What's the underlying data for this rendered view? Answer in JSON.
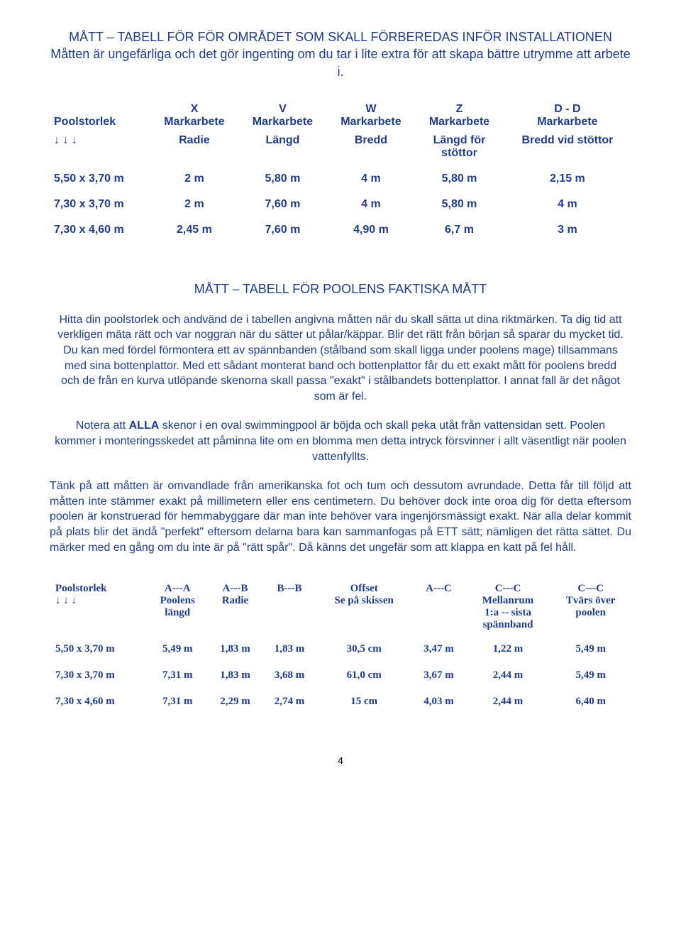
{
  "colors": {
    "text": "#1f3b8a",
    "pageNumber": "#000000",
    "background": "#ffffff"
  },
  "typography": {
    "bodyFont": "Arial",
    "table2Font": "Times New Roman",
    "bodySize": 16,
    "titleSize": 18,
    "table2Size": 15
  },
  "title": {
    "line1": "MÅTT – TABELL FÖR FÖR OMRÅDET SOM SKALL FÖRBEREDAS INFÖR INSTALLATIONEN",
    "line2": "Måtten är ungefärliga och det gör ingenting om du tar i lite extra för att skapa bättre utrymme att arbete i."
  },
  "table1": {
    "headers": {
      "col0": "Poolstorlek",
      "col1a": "X",
      "col1b": "Markarbete",
      "col2a": "V",
      "col2b": "Markarbete",
      "col3a": "W",
      "col3b": "Markarbete",
      "col4a": "Z",
      "col4b": "Markarbete",
      "col5a": "D - D",
      "col5b": "Markarbete"
    },
    "subheaders": {
      "col0": "↓ ↓ ↓",
      "col1": "Radie",
      "col2": "Längd",
      "col3": "Bredd",
      "col4a": "Längd för",
      "col4b": "stöttor",
      "col5": "Bredd vid stöttor"
    },
    "rows": [
      {
        "c0": "5,50 x 3,70 m",
        "c1": "2 m",
        "c2": "5,80 m",
        "c3": "4 m",
        "c4": "5,80 m",
        "c5": "2,15 m"
      },
      {
        "c0": "7,30 x 3,70 m",
        "c1": "2 m",
        "c2": "7,60 m",
        "c3": "4 m",
        "c4": "5,80 m",
        "c5": "4 m"
      },
      {
        "c0": "7,30 x 4,60 m",
        "c1": "2,45 m",
        "c2": "7,60 m",
        "c3": "4,90 m",
        "c4": "6,7 m",
        "c5": "3 m"
      }
    ]
  },
  "section2": {
    "title": "MÅTT – TABELL FÖR POOLENS FAKTISKA MÅTT",
    "para1": "Hitta din poolstorlek och andvänd de i  tabellen angivna måtten när du skall sätta ut dina riktmärken. Ta dig tid att verkligen mäta rätt och var noggran när du sätter ut pålar/käppar. Blir det rätt från början så sparar du mycket tid. Du kan med fördel förmontera ett av spännbanden (stålband som skall ligga under poolens mage) tillsammans med sina bottenplattor. Med ett sådant monterat band och bottenplattor får du ett exakt mått för poolens bredd och de från en kurva utlöpande skenorna skall passa \"exakt\"  i stålbandets bottenplattor. I annat fall är det något som är fel.",
    "para2a": "Notera  att ",
    "para2bold": "ALLA",
    "para2b": " skenor i en oval swimmingpool är böjda och skall peka utåt från vattensidan sett. Poolen kommer i monteringsskedet  att påminna lite om en blomma men detta intryck försvinner i allt väsentligt när poolen vattenfyllts.",
    "para3": "Tänk på att måtten är omvandlade från amerikanska fot och tum och dessutom avrundade. Detta får till följd att måtten inte stämmer exakt på millimetern eller ens centimetern. Du behöver dock inte oroa dig för detta eftersom poolen är konstruerad för hemmabyggare där man inte behöver vara ingenjörsmässigt exakt. När alla delar kommit på plats blir det ändå \"perfekt\" eftersom delarna bara kan sammanfogas på ETT sätt; nämligen det rätta sättet. Du märker med en gång om du inte är på \"rätt spår\". Då känns det ungefär som att klappa en katt på fel håll."
  },
  "table2": {
    "headers": {
      "col0a": "Poolstorlek",
      "col0b": "↓ ↓ ↓",
      "col1a": "A---A",
      "col1b": "Poolens",
      "col1c": "längd",
      "col2a": "A---B",
      "col2b": "Radie",
      "col3a": "B---B",
      "col4a": "Offset",
      "col4b": "Se på skissen",
      "col5a": "A---C",
      "col6a": "C---C",
      "col6b": "Mellanrum",
      "col6c": "1:a -- sista",
      "col6d": "spännband",
      "col7a": "C---C",
      "col7b": "Tvärs över",
      "col7c": "poolen"
    },
    "rows": [
      {
        "c0": "5,50 x 3,70 m",
        "c1": "5,49 m",
        "c2": "1,83 m",
        "c3": "1,83 m",
        "c4": "30,5 cm",
        "c5": "3,47 m",
        "c6": "1,22 m",
        "c7": "5,49 m"
      },
      {
        "c0": "7,30 x 3,70 m",
        "c1": "7,31 m",
        "c2": "1,83 m",
        "c3": "3,68 m",
        "c4": "61,0 cm",
        "c5": "3,67 m",
        "c6": "2,44 m",
        "c7": "5,49 m"
      },
      {
        "c0": "7,30 x 4,60 m",
        "c1": "7,31 m",
        "c2": "2,29 m",
        "c3": "2,74 m",
        "c4": "15 cm",
        "c5": "4,03 m",
        "c6": "2,44 m",
        "c7": "6,40 m"
      }
    ]
  },
  "pageNumber": "4"
}
